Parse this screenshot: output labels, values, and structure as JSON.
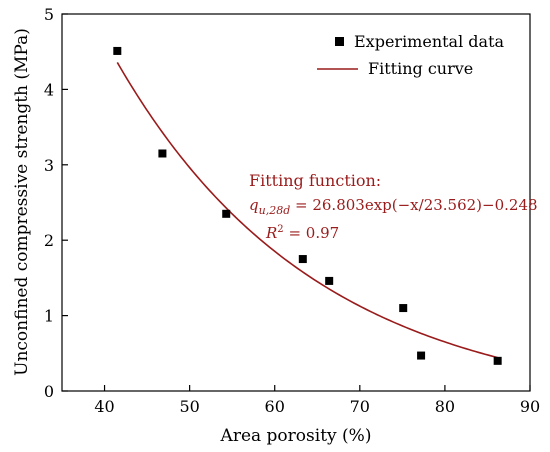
{
  "chart_data": {
    "type": "scatter",
    "xlabel": "Area porosity (%)",
    "ylabel": "Unconfined compressive strength (MPa)",
    "xlim": [
      35,
      90
    ],
    "ylim": [
      0,
      5
    ],
    "xticks": [
      40,
      50,
      60,
      70,
      80,
      90
    ],
    "yticks": [
      0,
      1,
      2,
      3,
      4,
      5
    ],
    "grid": false,
    "legend_position": "top-right",
    "series": [
      {
        "name": "Experimental data",
        "kind": "scatter",
        "marker": "square",
        "color": "#000000",
        "x": [
          41.5,
          46.8,
          54.3,
          63.3,
          66.4,
          75.1,
          77.2,
          86.2
        ],
        "y": [
          4.51,
          3.15,
          2.35,
          1.75,
          1.46,
          1.1,
          0.47,
          0.4
        ]
      },
      {
        "name": "Fitting curve",
        "kind": "line",
        "color": "#9a1b1b",
        "x_range": [
          41.5,
          86.2
        ],
        "model": {
          "a": 26.803,
          "b": 23.562,
          "c": -0.248
        }
      }
    ],
    "annotation": {
      "title": "Fitting function:",
      "q_main": "q",
      "q_sub": "u,28d",
      "equation": " = 26.803exp(−x/23.562)−0.248",
      "r2_main": "R",
      "r2_sup": "2",
      "r2_value": " = 0.97"
    }
  }
}
